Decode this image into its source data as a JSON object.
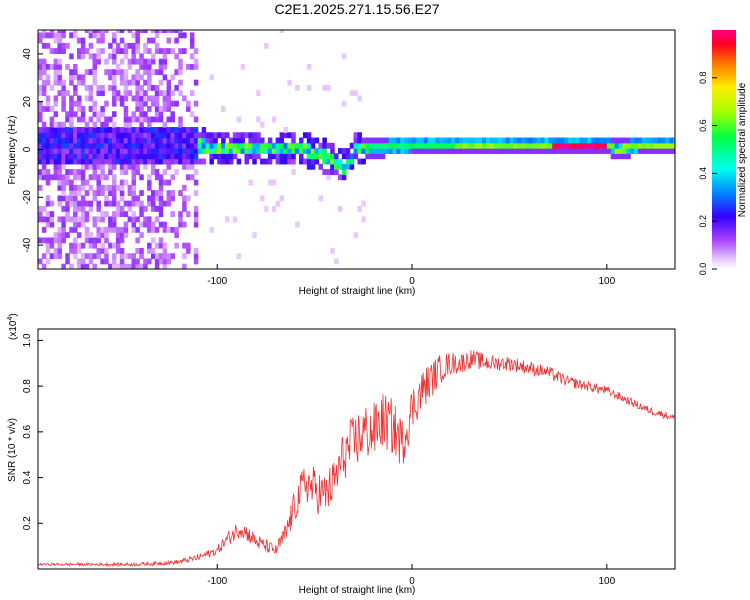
{
  "title": "C2E1.2025.271.15.56.E27",
  "chart_data": [
    {
      "type": "heatmap",
      "xlabel": "Height of straight line (km)",
      "ylabel": "Frequency (Hz)",
      "xlim": [
        -192,
        135
      ],
      "ylim": [
        -50,
        50
      ],
      "xticks": [
        -100,
        0,
        100
      ],
      "yticks": [
        -40,
        -20,
        0,
        20,
        40
      ],
      "colorbar": {
        "label": "Normalized spectral amplitude",
        "range": [
          0,
          1
        ],
        "ticks": [
          "0.0",
          "0.2",
          "0.4",
          "0.6",
          "0.8"
        ],
        "tick_values": [
          0.0,
          0.2,
          0.4,
          0.6,
          0.8
        ]
      },
      "ridge": {
        "x": [
          -192,
          -150,
          -120,
          -100,
          -80,
          -60,
          -45,
          -35,
          -30,
          -20,
          0,
          20,
          50,
          80,
          100,
          105,
          115,
          135
        ],
        "freq": [
          0,
          0.5,
          1,
          0,
          -1,
          0,
          -4,
          -9,
          -1,
          0,
          1,
          1,
          1,
          1,
          1,
          -1,
          1,
          1
        ]
      }
    },
    {
      "type": "line",
      "xlabel": "Height of straight line (km)",
      "ylabel": "SNR (10 * v/v)",
      "y_scale_label": "(x10",
      "y_scale_exp": "4",
      "xlim": [
        -192,
        135
      ],
      "ylim": [
        0,
        1.05
      ],
      "xticks": [
        -100,
        0,
        100
      ],
      "yticks": [
        0.2,
        0.4,
        0.6,
        0.8,
        1.0
      ],
      "ytick_labels": [
        "0.2",
        "0.4",
        "0.6",
        "0.8",
        "1.0"
      ],
      "color": "#ee3333",
      "envelope": {
        "x": [
          -192,
          -140,
          -120,
          -110,
          -100,
          -95,
          -88,
          -85,
          -80,
          -70,
          -65,
          -60,
          -55,
          -50,
          -45,
          -40,
          -35,
          -30,
          -25,
          -20,
          -15,
          -10,
          -5,
          0,
          5,
          10,
          15,
          20,
          25,
          30,
          40,
          50,
          60,
          70,
          80,
          90,
          100,
          110,
          120,
          135
        ],
        "y": [
          0.02,
          0.02,
          0.03,
          0.05,
          0.08,
          0.13,
          0.18,
          0.16,
          0.12,
          0.08,
          0.15,
          0.28,
          0.38,
          0.35,
          0.32,
          0.38,
          0.5,
          0.55,
          0.6,
          0.6,
          0.65,
          0.62,
          0.55,
          0.7,
          0.78,
          0.83,
          0.88,
          0.9,
          0.9,
          0.92,
          0.9,
          0.9,
          0.88,
          0.86,
          0.82,
          0.8,
          0.78,
          0.74,
          0.7,
          0.66
        ]
      },
      "noise": {
        "x": [
          -192,
          -140,
          -120,
          -100,
          -90,
          -80,
          -70,
          -60,
          -50,
          -40,
          -30,
          -20,
          -10,
          0,
          10,
          20,
          40,
          60,
          80,
          100,
          135
        ],
        "amp": [
          0.01,
          0.015,
          0.02,
          0.04,
          0.08,
          0.07,
          0.05,
          0.15,
          0.2,
          0.2,
          0.25,
          0.25,
          0.25,
          0.2,
          0.16,
          0.1,
          0.07,
          0.06,
          0.05,
          0.04,
          0.03
        ]
      }
    }
  ]
}
